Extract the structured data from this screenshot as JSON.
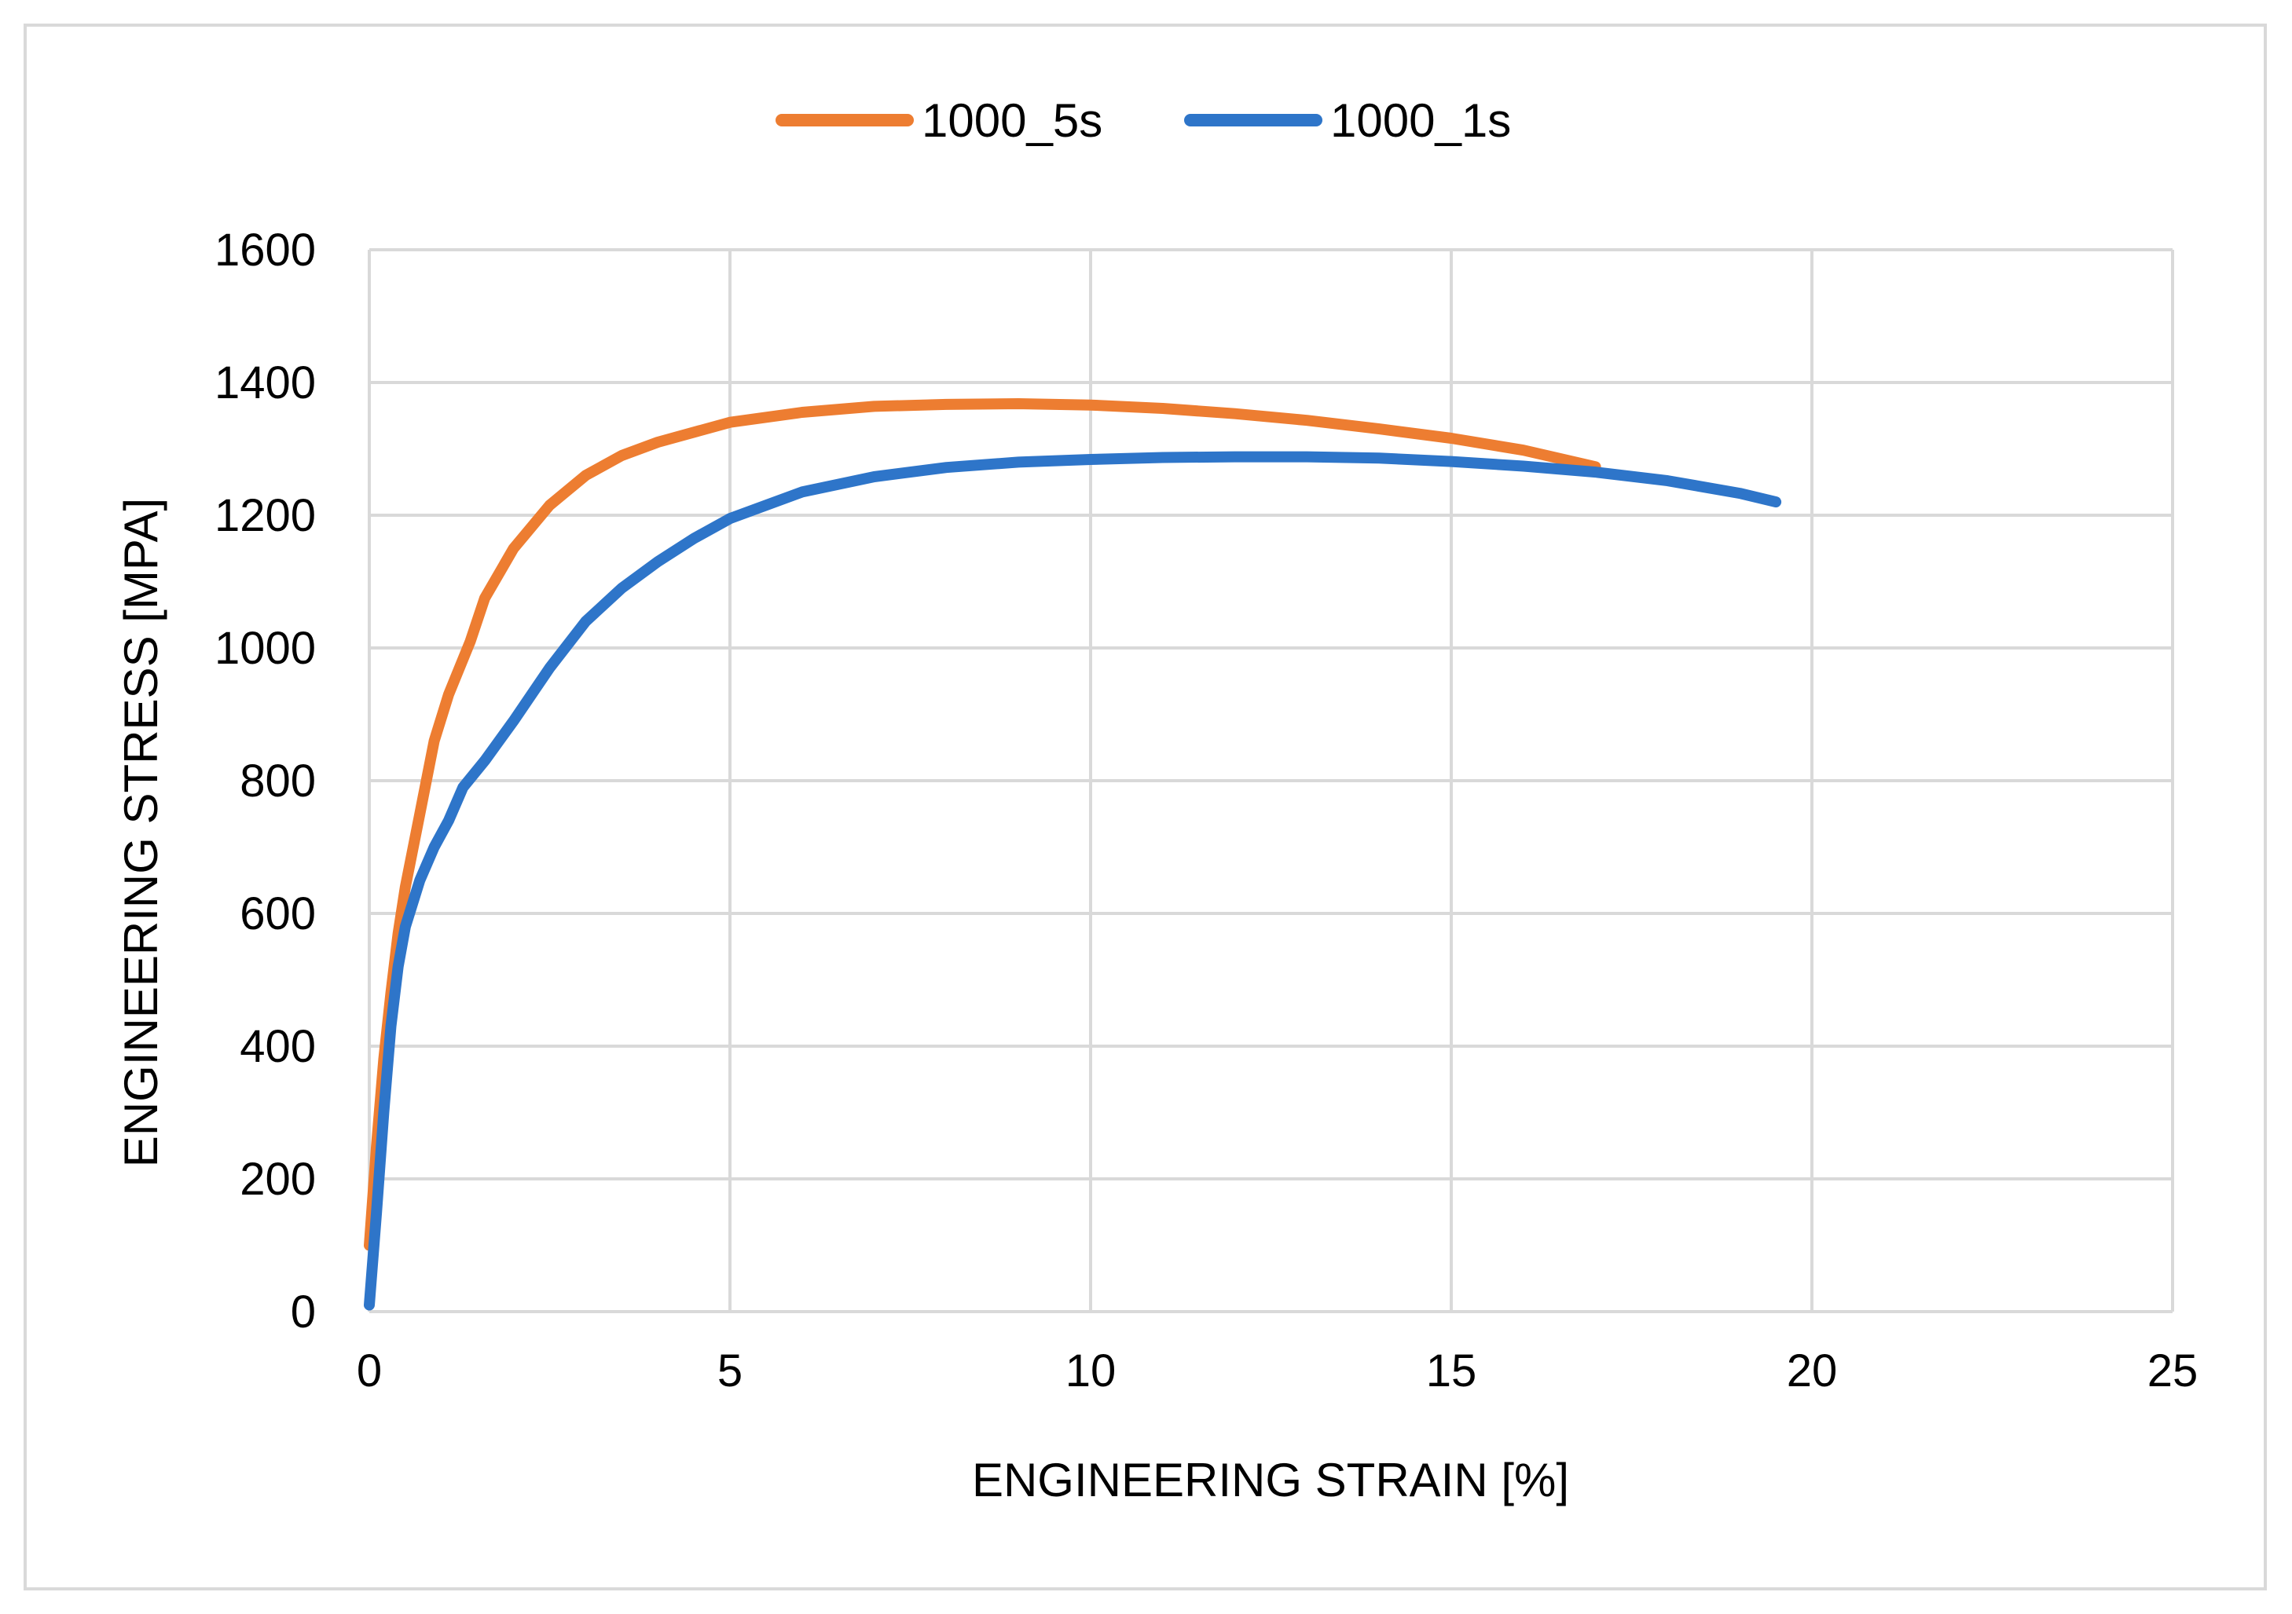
{
  "chart_data": {
    "type": "line",
    "title": "",
    "xlabel": "ENGINEERING STRAIN [%]",
    "ylabel": "ENGINEERING STRESS [MPA]",
    "xlim": [
      0,
      25
    ],
    "ylim": [
      0,
      1600
    ],
    "xticks": [
      "0",
      "5",
      "10",
      "15",
      "20",
      "25"
    ],
    "yticks": [
      "0",
      "200",
      "400",
      "600",
      "800",
      "1000",
      "1200",
      "1400",
      "1600"
    ],
    "grid": true,
    "legend_position": "top-center",
    "series": [
      {
        "name": "1000_5s",
        "color": "#ED7D31",
        "x": [
          0.0,
          0.1,
          0.2,
          0.3,
          0.4,
          0.5,
          0.7,
          0.9,
          1.1,
          1.4,
          1.6,
          2.0,
          2.5,
          3.0,
          3.5,
          4.0,
          5.0,
          6.0,
          7.0,
          8.0,
          9.0,
          10.0,
          11.0,
          12.0,
          13.0,
          14.0,
          15.0,
          16.0,
          17.0
        ],
        "y": [
          100,
          250,
          380,
          480,
          570,
          640,
          750,
          860,
          930,
          1010,
          1075,
          1150,
          1215,
          1260,
          1290,
          1310,
          1340,
          1355,
          1364,
          1367,
          1368,
          1366,
          1361,
          1353,
          1343,
          1330,
          1316,
          1298,
          1273
        ]
      },
      {
        "name": "1000_1s",
        "color": "#2E75C9",
        "x": [
          0.0,
          0.05,
          0.1,
          0.2,
          0.3,
          0.4,
          0.5,
          0.7,
          0.9,
          1.1,
          1.3,
          1.6,
          2.0,
          2.5,
          3.0,
          3.5,
          4.0,
          4.5,
          5.0,
          6.0,
          7.0,
          8.0,
          9.0,
          10.0,
          11.0,
          12.0,
          13.0,
          14.0,
          15.0,
          16.0,
          17.0,
          18.0,
          19.0,
          19.5
        ],
        "y": [
          10,
          80,
          150,
          300,
          430,
          520,
          580,
          650,
          700,
          740,
          790,
          830,
          890,
          970,
          1040,
          1090,
          1130,
          1165,
          1195,
          1235,
          1258,
          1272,
          1280,
          1284,
          1287,
          1288,
          1288,
          1286,
          1281,
          1274,
          1265,
          1252,
          1233,
          1220
        ]
      }
    ]
  }
}
